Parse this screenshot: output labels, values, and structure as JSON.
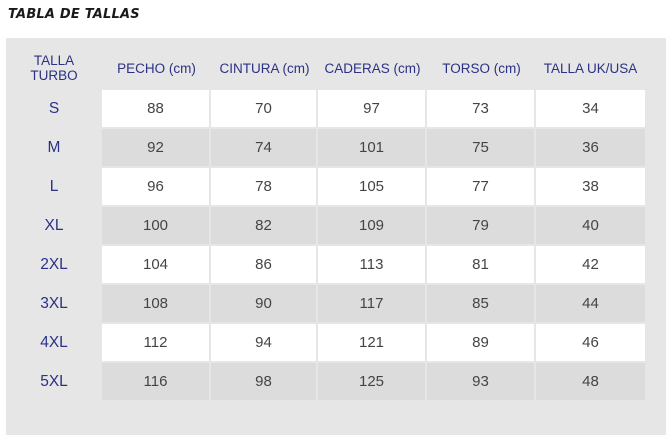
{
  "title": "TABLA DE TALLAS",
  "columns": [
    "TALLA\nTURBO",
    "PECHO (cm)",
    "CINTURA (cm)",
    "CADERAS (cm)",
    "TORSO (cm)",
    "TALLA UK/USA"
  ],
  "rows": [
    {
      "size": "S",
      "pecho": "88",
      "cintura": "70",
      "caderas": "97",
      "torso": "73",
      "uk_usa": "34"
    },
    {
      "size": "M",
      "pecho": "92",
      "cintura": "74",
      "caderas": "101",
      "torso": "75",
      "uk_usa": "36"
    },
    {
      "size": "L",
      "pecho": "96",
      "cintura": "78",
      "caderas": "105",
      "torso": "77",
      "uk_usa": "38"
    },
    {
      "size": "XL",
      "pecho": "100",
      "cintura": "82",
      "caderas": "109",
      "torso": "79",
      "uk_usa": "40"
    },
    {
      "size": "2XL",
      "pecho": "104",
      "cintura": "86",
      "caderas": "113",
      "torso": "81",
      "uk_usa": "42"
    },
    {
      "size": "3XL",
      "pecho": "108",
      "cintura": "90",
      "caderas": "117",
      "torso": "85",
      "uk_usa": "44"
    },
    {
      "size": "4XL",
      "pecho": "112",
      "cintura": "94",
      "caderas": "121",
      "torso": "89",
      "uk_usa": "46"
    },
    {
      "size": "5XL",
      "pecho": "116",
      "cintura": "98",
      "caderas": "125",
      "torso": "93",
      "uk_usa": "48"
    }
  ],
  "colors": {
    "header_text": "#2b3184",
    "panel_bg": "#e6e6e6",
    "row_light": "#ffffff",
    "row_dark": "#dcdcdc",
    "value_text": "#444444"
  }
}
